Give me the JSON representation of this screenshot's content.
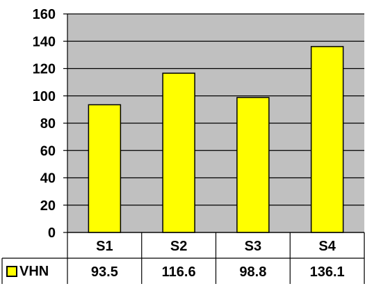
{
  "chart_data": {
    "type": "bar",
    "categories": [
      "S1",
      "S2",
      "S3",
      "S4"
    ],
    "series": [
      {
        "name": "VHN",
        "values": [
          93.5,
          116.6,
          98.8,
          136.1
        ],
        "color": "#FFFF00"
      }
    ],
    "ylim": [
      0,
      160
    ],
    "yticks": [
      0,
      20,
      40,
      60,
      80,
      100,
      120,
      140,
      160
    ],
    "grid": true,
    "data_table": true,
    "plot_background": "#C0C0C0",
    "gridline_color": "#000000"
  }
}
